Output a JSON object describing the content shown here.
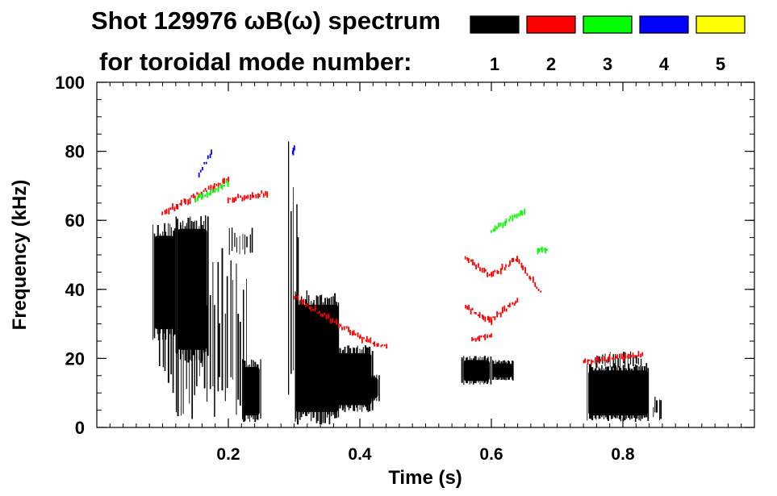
{
  "chart_data": {
    "type": "heatmap",
    "title": "Shot 129976 ωB(ω) spectrum",
    "subtitle": "for toroidal mode number:",
    "xlabel": "Time (s)",
    "ylabel": "Frequency (kHz)",
    "xlim": [
      0.0,
      1.0
    ],
    "ylim": [
      0,
      100
    ],
    "x_ticks": [
      0.2,
      0.4,
      0.6,
      0.8
    ],
    "x_tick_labels": [
      "0.2",
      "0.4",
      "0.6",
      "0.8"
    ],
    "y_ticks": [
      0,
      20,
      40,
      60,
      80,
      100
    ],
    "y_tick_labels": [
      "0",
      "20",
      "40",
      "60",
      "80",
      "100"
    ],
    "x_minor_step": 0.02,
    "y_minor_step": 5,
    "legend": {
      "placement": "top-right",
      "entries": [
        {
          "n": "1",
          "color": "#000000"
        },
        {
          "n": "2",
          "color": "#ff0000"
        },
        {
          "n": "3",
          "color": "#00ff00"
        },
        {
          "n": "4",
          "color": "#0000ff"
        },
        {
          "n": "5",
          "color": "#ffff00"
        }
      ]
    },
    "series": [
      {
        "name": "n=1",
        "color": "#000000",
        "regions": [
          {
            "t": [
              0.085,
              0.12
            ],
            "f": [
              28,
              56
            ]
          },
          {
            "t": [
              0.12,
              0.17
            ],
            "f": [
              22,
              58
            ]
          },
          {
            "t": [
              0.095,
              0.23
            ],
            "f": [
              2,
              52
            ],
            "style": "streaks"
          },
          {
            "t": [
              0.2,
              0.24
            ],
            "f": [
              50,
              58
            ],
            "style": "streaks"
          },
          {
            "t": [
              0.22,
              0.25
            ],
            "f": [
              3,
              18
            ]
          },
          {
            "t": [
              0.29,
              0.31
            ],
            "f": [
              5,
              85
            ],
            "style": "streaks"
          },
          {
            "t": [
              0.3,
              0.37
            ],
            "f": [
              4,
              36
            ]
          },
          {
            "t": [
              0.34,
              0.42
            ],
            "f": [
              6,
              22
            ]
          },
          {
            "t": [
              0.37,
              0.43
            ],
            "f": [
              8,
              15
            ]
          },
          {
            "t": [
              0.555,
              0.6
            ],
            "f": [
              13,
              20
            ]
          },
          {
            "t": [
              0.6,
              0.635
            ],
            "f": [
              14,
              19
            ]
          },
          {
            "t": [
              0.745,
              0.84
            ],
            "f": [
              3,
              17
            ]
          },
          {
            "t": [
              0.76,
              0.83
            ],
            "f": [
              17,
              22
            ],
            "style": "streaks"
          },
          {
            "t": [
              0.845,
              0.86
            ],
            "f": [
              2,
              9
            ],
            "style": "streaks"
          }
        ]
      },
      {
        "name": "n=2",
        "color": "#ff0000",
        "segments": [
          {
            "t": [
              0.1,
              0.2
            ],
            "f": [
              62,
              72
            ]
          },
          {
            "t": [
              0.2,
              0.26
            ],
            "f": [
              66,
              68
            ]
          },
          {
            "t": [
              0.3,
              0.4
            ],
            "f": [
              38,
              26
            ]
          },
          {
            "t": [
              0.4,
              0.44
            ],
            "f": [
              26,
              23
            ]
          },
          {
            "t": [
              0.56,
              0.6
            ],
            "f": [
              49,
              44
            ]
          },
          {
            "t": [
              0.6,
              0.64
            ],
            "f": [
              44,
              49
            ]
          },
          {
            "t": [
              0.64,
              0.675
            ],
            "f": [
              49,
              39
            ]
          },
          {
            "t": [
              0.56,
              0.6
            ],
            "f": [
              35,
              31
            ]
          },
          {
            "t": [
              0.6,
              0.64
            ],
            "f": [
              31,
              37
            ]
          },
          {
            "t": [
              0.57,
              0.6
            ],
            "f": [
              25,
              27
            ]
          },
          {
            "t": [
              0.74,
              0.83
            ],
            "f": [
              19,
              21
            ]
          }
        ]
      },
      {
        "name": "n=3",
        "color": "#00ff00",
        "segments": [
          {
            "t": [
              0.15,
              0.2
            ],
            "f": [
              66,
              71
            ]
          },
          {
            "t": [
              0.6,
              0.65
            ],
            "f": [
              57,
              63
            ]
          },
          {
            "t": [
              0.67,
              0.685
            ],
            "f": [
              51,
              52
            ]
          }
        ]
      },
      {
        "name": "n=4",
        "color": "#0000ff",
        "segments": [
          {
            "t": [
              0.155,
              0.175
            ],
            "f": [
              73,
              80
            ]
          },
          {
            "t": [
              0.298,
              0.3
            ],
            "f": [
              79,
              81
            ]
          }
        ]
      },
      {
        "name": "n=5",
        "color": "#ffff00",
        "segments": []
      }
    ]
  }
}
